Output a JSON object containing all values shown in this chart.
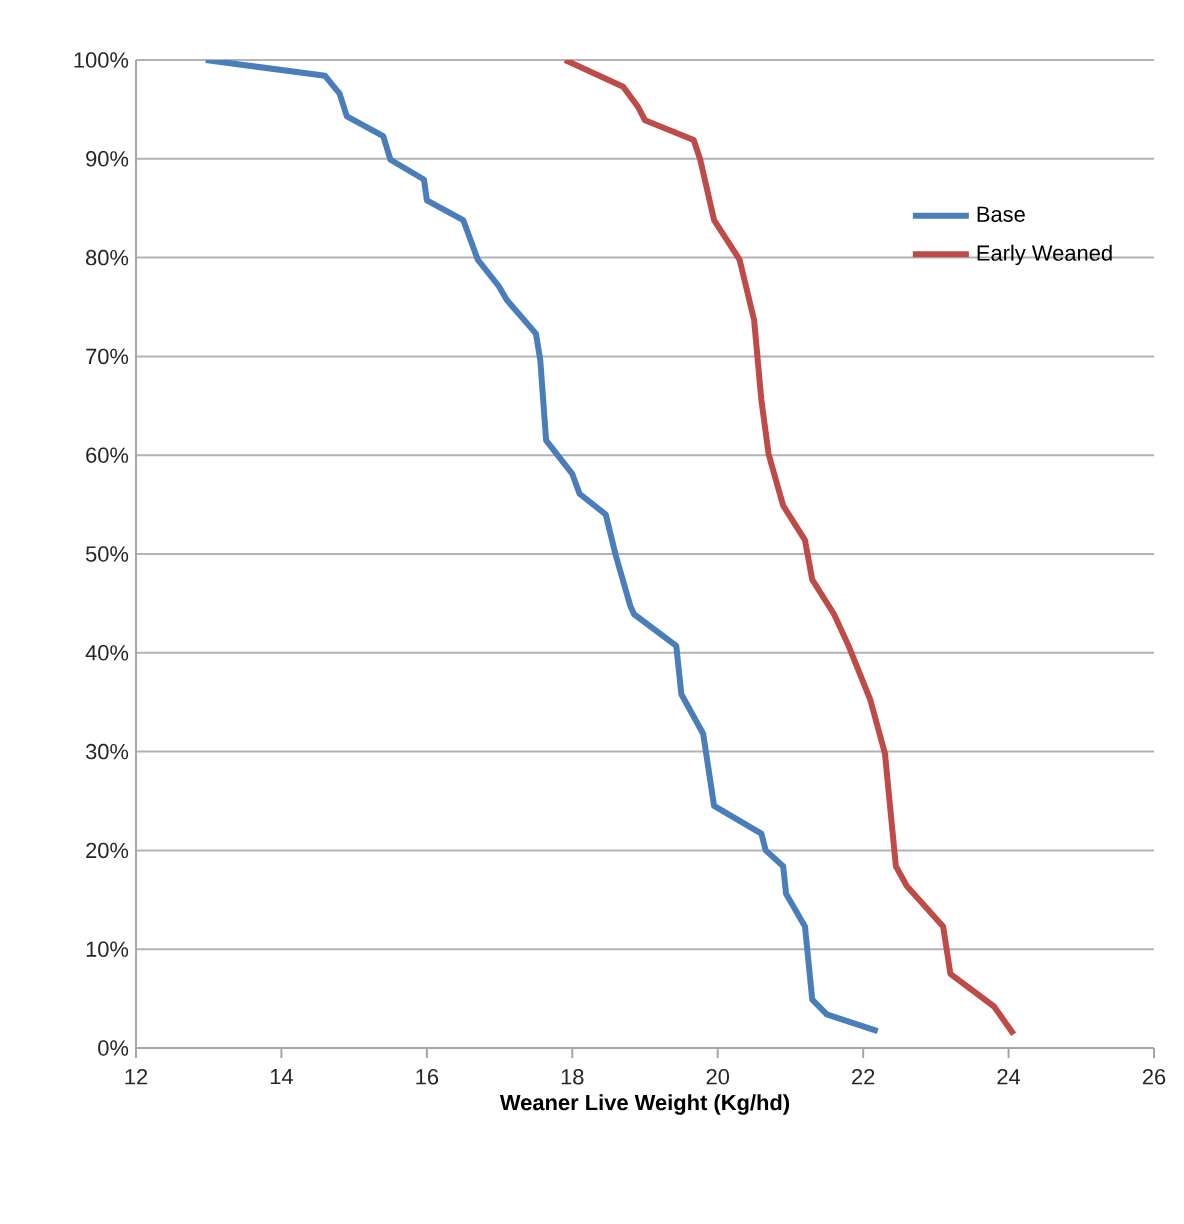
{
  "chart_data": {
    "type": "line",
    "xlabel": "Weaner Live Weight (Kg/hd)",
    "xlim": [
      12,
      26
    ],
    "xticks": [
      12,
      14,
      16,
      18,
      20,
      22,
      24,
      26
    ],
    "ylim": [
      0,
      100
    ],
    "yticks": [
      {
        "value": 0,
        "label": "0%"
      },
      {
        "value": 10,
        "label": "10%"
      },
      {
        "value": 20,
        "label": "20%"
      },
      {
        "value": 30,
        "label": "30%"
      },
      {
        "value": 40,
        "label": "40%"
      },
      {
        "value": 50,
        "label": "50%"
      },
      {
        "value": 60,
        "label": "60%"
      },
      {
        "value": 70,
        "label": "70%"
      },
      {
        "value": 80,
        "label": "80%"
      },
      {
        "value": 90,
        "label": "90%"
      },
      {
        "value": 100,
        "label": "100%"
      }
    ],
    "grid": "y",
    "legend": "top right",
    "marker": "none",
    "line_style": "solid",
    "series": [
      {
        "name": "Base",
        "color": "#4a7ebb",
        "x": [
          12.96,
          14.6,
          14.8,
          14.9,
          15.4,
          15.5,
          15.96,
          16.0,
          16.5,
          16.7,
          16.99,
          17.1,
          17.5,
          17.56,
          17.64,
          18.0,
          18.1,
          18.46,
          18.6,
          18.8,
          18.85,
          19.43,
          19.5,
          19.8,
          19.95,
          20.6,
          20.66,
          20.9,
          20.94,
          21.2,
          21.3,
          21.5,
          22.2
        ],
        "values": [
          100,
          98.4,
          96.6,
          94.3,
          92.3,
          89.9,
          87.9,
          85.8,
          83.8,
          79.8,
          77.1,
          75.7,
          72.3,
          69.6,
          61.5,
          58.1,
          56.1,
          54,
          49.8,
          44.7,
          43.9,
          40.7,
          35.8,
          31.8,
          24.5,
          21.7,
          20,
          18.4,
          15.6,
          12.3,
          4.9,
          3.4,
          1.7
        ]
      },
      {
        "name": "Early Weaned",
        "color": "#be4b48",
        "x": [
          17.9,
          18.7,
          18.9,
          19.0,
          19.67,
          19.76,
          19.95,
          20.3,
          20.5,
          20.6,
          20.7,
          20.9,
          21.2,
          21.3,
          21.6,
          21.8,
          22.1,
          22.3,
          22.45,
          22.6,
          23.1,
          23.2,
          23.8,
          24.07
        ],
        "values": [
          100,
          97.3,
          95.3,
          93.9,
          91.9,
          89.9,
          83.8,
          79.8,
          73.7,
          65.6,
          60.1,
          54.9,
          51.4,
          47.4,
          43.9,
          40.7,
          35.2,
          29.8,
          18.4,
          16.4,
          12.3,
          7.5,
          4.2,
          1.4
        ]
      }
    ]
  }
}
